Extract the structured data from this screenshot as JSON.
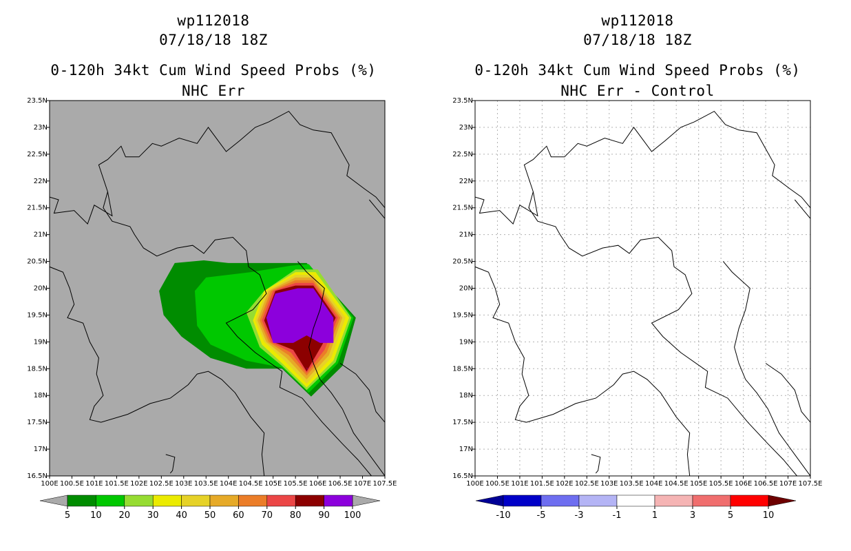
{
  "chart_data": [
    {
      "type": "heatmap",
      "title_lines": [
        "wp112018",
        "07/18/18 18Z",
        "0-120h 34kt Cum Wind Speed Probs (%)",
        "NHC Err"
      ],
      "xlim": [
        100,
        107.5
      ],
      "ylim": [
        16.5,
        23.5
      ],
      "x_ticks": [
        "100E",
        "100.5E",
        "101E",
        "101.5E",
        "102E",
        "102.5E",
        "103E",
        "103.5E",
        "104E",
        "104.5E",
        "105E",
        "105.5E",
        "106E",
        "106.5E",
        "107E",
        "107.5E"
      ],
      "y_ticks": [
        "16.5N",
        "17N",
        "17.5N",
        "18N",
        "18.5N",
        "19N",
        "19.5N",
        "20N",
        "20.5N",
        "21N",
        "21.5N",
        "22N",
        "22.5N",
        "23N",
        "23.5N"
      ],
      "background_color": "#aaaaaa",
      "colorbar": {
        "labels": [
          "5",
          "10",
          "20",
          "30",
          "40",
          "50",
          "60",
          "70",
          "80",
          "90",
          "100"
        ],
        "colors": [
          "#008c00",
          "#00c800",
          "#96dc32",
          "#ebeb00",
          "#e6d228",
          "#e6aa28",
          "#eb7d28",
          "#eb4646",
          "#8c0000",
          "#8c00dc"
        ],
        "left_arrow_color": "#aaaaaa",
        "right_arrow_color": "#aaaaaa"
      },
      "contour_levels": [
        {
          "min": 5,
          "color": "#008c00",
          "polygon": [
            [
              102.45,
              19.95
            ],
            [
              102.8,
              20.47
            ],
            [
              103.45,
              20.52
            ],
            [
              104,
              20.47
            ],
            [
              105.75,
              20.47
            ],
            [
              106.85,
              19.45
            ],
            [
              106.55,
              18.55
            ],
            [
              105.85,
              17.98
            ],
            [
              105.2,
              18.5
            ],
            [
              104.4,
              18.5
            ],
            [
              103.6,
              18.7
            ],
            [
              102.95,
              19.1
            ],
            [
              102.55,
              19.5
            ]
          ]
        },
        {
          "min": 10,
          "color": "#00c800",
          "polygon": [
            [
              103.25,
              19.95
            ],
            [
              103.5,
              20.2
            ],
            [
              104.5,
              20.3
            ],
            [
              105.4,
              20.42
            ],
            [
              105.8,
              20.45
            ],
            [
              106.8,
              19.45
            ],
            [
              106.45,
              18.6
            ],
            [
              105.8,
              18.05
            ],
            [
              105.2,
              18.52
            ],
            [
              104.4,
              18.65
            ],
            [
              103.6,
              18.95
            ],
            [
              103.3,
              19.3
            ]
          ]
        },
        {
          "min": 20,
          "color": "#96dc32",
          "polygon": [
            [
              104.4,
              19.55
            ],
            [
              104.8,
              19.95
            ],
            [
              105.5,
              20.35
            ],
            [
              106.0,
              20.35
            ],
            [
              106.75,
              19.45
            ],
            [
              106.4,
              18.62
            ],
            [
              105.75,
              18.1
            ],
            [
              105.2,
              18.55
            ],
            [
              104.7,
              18.9
            ]
          ]
        },
        {
          "min": 30,
          "color": "#ebeb00",
          "polygon": [
            [
              104.55,
              19.4
            ],
            [
              104.8,
              19.95
            ],
            [
              105.5,
              20.3
            ],
            [
              105.95,
              20.3
            ],
            [
              106.7,
              19.45
            ],
            [
              106.35,
              18.65
            ],
            [
              105.75,
              18.15
            ],
            [
              105.2,
              18.6
            ],
            [
              104.75,
              18.95
            ]
          ]
        },
        {
          "min": 40,
          "color": "#e6d228",
          "polygon": [
            [
              104.6,
              19.4
            ],
            [
              104.85,
              19.95
            ],
            [
              105.5,
              20.25
            ],
            [
              105.9,
              20.25
            ],
            [
              106.62,
              19.45
            ],
            [
              106.3,
              18.7
            ],
            [
              105.75,
              18.22
            ],
            [
              105.25,
              18.65
            ],
            [
              104.8,
              19.0
            ]
          ]
        },
        {
          "min": 50,
          "color": "#e6aa28",
          "polygon": [
            [
              104.65,
              19.4
            ],
            [
              104.9,
              19.95
            ],
            [
              105.5,
              20.2
            ],
            [
              105.9,
              20.2
            ],
            [
              106.55,
              19.45
            ],
            [
              106.25,
              18.75
            ],
            [
              105.75,
              18.3
            ],
            [
              105.3,
              18.7
            ],
            [
              104.85,
              19.0
            ]
          ]
        },
        {
          "min": 60,
          "color": "#eb7d28",
          "polygon": [
            [
              104.7,
              19.4
            ],
            [
              104.95,
              19.95
            ],
            [
              105.5,
              20.15
            ],
            [
              105.9,
              20.15
            ],
            [
              106.5,
              19.45
            ],
            [
              106.2,
              18.8
            ],
            [
              105.75,
              18.37
            ],
            [
              105.35,
              18.75
            ],
            [
              104.9,
              19.0
            ]
          ]
        },
        {
          "min": 70,
          "color": "#eb4646",
          "polygon": [
            [
              104.75,
              19.4
            ],
            [
              105.0,
              19.95
            ],
            [
              105.5,
              20.1
            ],
            [
              105.9,
              20.1
            ],
            [
              106.45,
              19.45
            ],
            [
              106.15,
              18.85
            ],
            [
              105.75,
              18.42
            ],
            [
              105.4,
              18.8
            ],
            [
              104.95,
              19.0
            ]
          ]
        },
        {
          "min": 80,
          "color": "#8c0000",
          "polygon": [
            [
              104.8,
              19.4
            ],
            [
              105.05,
              19.95
            ],
            [
              105.5,
              20.05
            ],
            [
              105.9,
              20.05
            ],
            [
              106.4,
              19.45
            ],
            [
              106.1,
              18.95
            ],
            [
              105.75,
              18.45
            ],
            [
              105.45,
              18.85
            ],
            [
              105.0,
              19.0
            ]
          ]
        },
        {
          "min": 90,
          "color": "#8c00dc",
          "polygon": [
            [
              104.85,
              19.45
            ],
            [
              105.05,
              19.9
            ],
            [
              105.55,
              20.0
            ],
            [
              105.9,
              20.0
            ],
            [
              106.35,
              19.45
            ],
            [
              106.35,
              18.98
            ],
            [
              105.95,
              18.98
            ],
            [
              105.76,
              18.48
            ],
            [
              105.72,
              18.75
            ],
            [
              105.5,
              18.98
            ],
            [
              105.0,
              18.98
            ]
          ]
        },
        {
          "min": 90,
          "color": "#8c0000",
          "polygon": [
            [
              105.45,
              18.98
            ],
            [
              105.75,
              19.12
            ],
            [
              106.05,
              18.98
            ],
            [
              105.77,
              18.5
            ]
          ]
        }
      ]
    },
    {
      "type": "heatmap",
      "title_lines": [
        "wp112018",
        "07/18/18 18Z",
        "0-120h 34kt Cum Wind Speed Probs (%)",
        "NHC Err - Control"
      ],
      "xlim": [
        100,
        107.5
      ],
      "ylim": [
        16.5,
        23.5
      ],
      "x_ticks": [
        "100E",
        "100.5E",
        "101E",
        "101.5E",
        "102E",
        "102.5E",
        "103E",
        "103.5E",
        "104E",
        "104.5E",
        "105E",
        "105.5E",
        "106E",
        "106.5E",
        "107E",
        "107.5E"
      ],
      "y_ticks": [
        "16.5N",
        "17N",
        "17.5N",
        "18N",
        "18.5N",
        "19N",
        "19.5N",
        "20N",
        "20.5N",
        "21N",
        "21.5N",
        "22N",
        "22.5N",
        "23N",
        "23.5N"
      ],
      "background_color": "#ffffff",
      "grid": true,
      "colorbar": {
        "labels": [
          "-10",
          "-5",
          "-3",
          "-1",
          "1",
          "3",
          "5",
          "10"
        ],
        "colors": [
          "#0000c8",
          "#6e6ef0",
          "#b4b4f5",
          "#ffffff",
          "#f5b4b4",
          "#f06e6e",
          "#ff0000"
        ],
        "left_arrow_color": "#000096",
        "right_arrow_color": "#6e0000"
      },
      "contour_levels": []
    }
  ],
  "coastline": [
    [
      [
        100.0,
        21.7
      ],
      [
        100.2,
        21.65
      ],
      [
        100.1,
        21.4
      ],
      [
        100.55,
        21.45
      ],
      [
        100.85,
        21.2
      ],
      [
        101.0,
        21.55
      ],
      [
        101.4,
        21.35
      ],
      [
        101.3,
        21.8
      ],
      [
        101.1,
        22.3
      ],
      [
        101.3,
        22.4
      ],
      [
        101.6,
        22.65
      ],
      [
        101.7,
        22.45
      ],
      [
        102.0,
        22.45
      ],
      [
        102.3,
        22.7
      ],
      [
        102.5,
        22.65
      ],
      [
        102.9,
        22.8
      ],
      [
        103.3,
        22.7
      ],
      [
        103.55,
        23.0
      ],
      [
        103.95,
        22.55
      ],
      [
        104.25,
        22.75
      ],
      [
        104.6,
        23.0
      ],
      [
        104.9,
        23.1
      ],
      [
        105.35,
        23.3
      ],
      [
        105.6,
        23.05
      ],
      [
        105.9,
        22.95
      ],
      [
        106.3,
        22.9
      ],
      [
        106.5,
        22.6
      ],
      [
        106.7,
        22.3
      ],
      [
        106.65,
        22.1
      ],
      [
        107.05,
        21.85
      ],
      [
        107.3,
        21.7
      ],
      [
        107.5,
        21.5
      ]
    ],
    [
      [
        101.3,
        21.8
      ],
      [
        101.2,
        21.5
      ],
      [
        101.4,
        21.25
      ],
      [
        101.8,
        21.15
      ],
      [
        101.9,
        21.0
      ],
      [
        102.1,
        20.75
      ],
      [
        102.4,
        20.6
      ],
      [
        102.85,
        20.75
      ],
      [
        103.2,
        20.8
      ],
      [
        103.45,
        20.65
      ],
      [
        103.7,
        20.9
      ],
      [
        104.1,
        20.95
      ],
      [
        104.4,
        20.7
      ],
      [
        104.45,
        20.4
      ],
      [
        104.7,
        20.25
      ],
      [
        104.85,
        19.9
      ],
      [
        104.55,
        19.6
      ],
      [
        103.95,
        19.35
      ],
      [
        104.2,
        19.1
      ],
      [
        104.6,
        18.8
      ],
      [
        105.2,
        18.45
      ],
      [
        105.15,
        18.15
      ],
      [
        105.65,
        17.95
      ],
      [
        106.1,
        17.5
      ],
      [
        106.55,
        17.1
      ],
      [
        106.9,
        16.8
      ],
      [
        107.2,
        16.5
      ]
    ],
    [
      [
        100.0,
        20.4
      ],
      [
        100.3,
        20.3
      ],
      [
        100.45,
        20.0
      ],
      [
        100.55,
        19.7
      ],
      [
        100.4,
        19.45
      ],
      [
        100.75,
        19.35
      ],
      [
        100.9,
        19.0
      ],
      [
        101.1,
        18.7
      ],
      [
        101.05,
        18.4
      ],
      [
        101.2,
        18.0
      ],
      [
        101.0,
        17.8
      ],
      [
        100.9,
        17.55
      ],
      [
        101.15,
        17.5
      ],
      [
        101.75,
        17.65
      ],
      [
        102.25,
        17.85
      ],
      [
        102.7,
        17.95
      ],
      [
        103.1,
        18.2
      ],
      [
        103.3,
        18.4
      ],
      [
        103.55,
        18.45
      ],
      [
        103.85,
        18.3
      ],
      [
        104.15,
        18.05
      ],
      [
        104.5,
        17.6
      ],
      [
        104.8,
        17.3
      ],
      [
        104.75,
        16.9
      ],
      [
        104.8,
        16.5
      ]
    ],
    [
      [
        105.55,
        20.5
      ],
      [
        105.75,
        20.3
      ],
      [
        106.15,
        20.0
      ],
      [
        106.05,
        19.6
      ],
      [
        105.9,
        19.25
      ],
      [
        105.8,
        18.9
      ],
      [
        105.9,
        18.6
      ],
      [
        106.05,
        18.3
      ],
      [
        106.3,
        18.05
      ],
      [
        106.55,
        17.75
      ],
      [
        106.8,
        17.3
      ],
      [
        107.15,
        16.9
      ],
      [
        107.5,
        16.5
      ]
    ],
    [
      [
        106.5,
        18.6
      ],
      [
        106.85,
        18.4
      ],
      [
        107.15,
        18.1
      ],
      [
        107.3,
        17.7
      ],
      [
        107.5,
        17.5
      ]
    ],
    [
      [
        107.15,
        21.65
      ],
      [
        107.3,
        21.5
      ],
      [
        107.5,
        21.3
      ]
    ],
    [
      [
        102.6,
        16.9
      ],
      [
        102.8,
        16.85
      ],
      [
        102.75,
        16.6
      ],
      [
        102.7,
        16.55
      ]
    ]
  ]
}
